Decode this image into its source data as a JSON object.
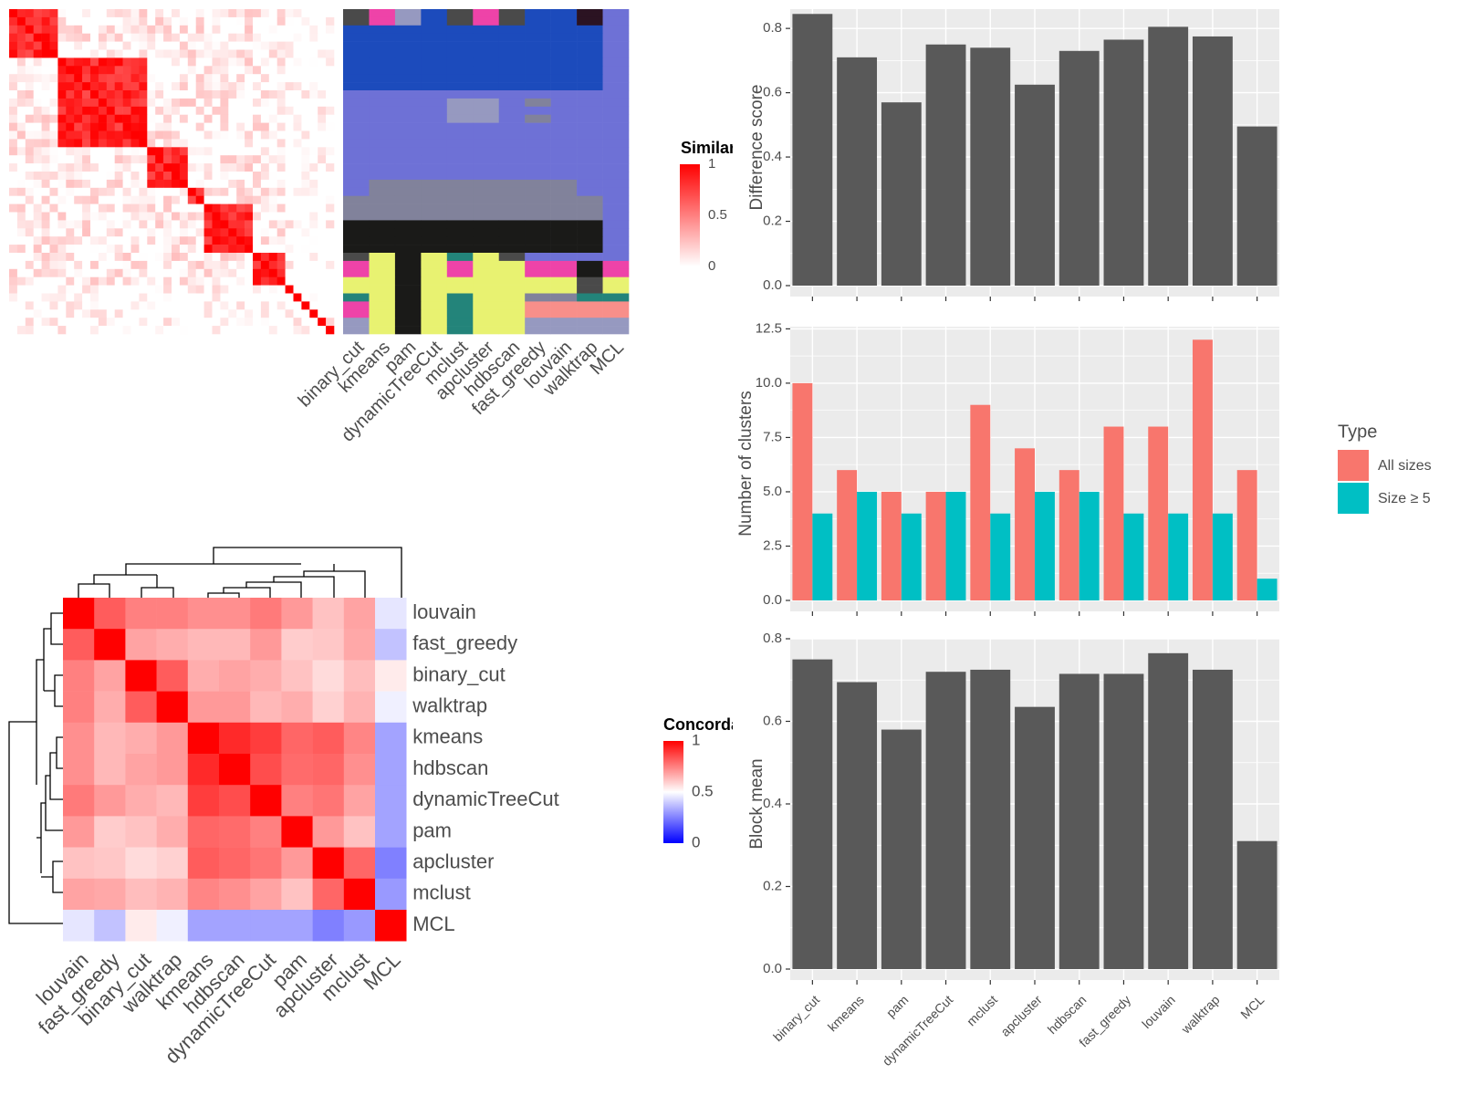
{
  "colors": {
    "panel_bg": "#EBEBEB",
    "grid": "#FFFFFF",
    "bar": "#595959",
    "all_sizes": "#F8766D",
    "size_ge5": "#00BFC4",
    "sim_low": "#FFFFFF",
    "sim_high": "#FF0000",
    "conc_low": "#0000FF",
    "conc_mid": "#FFFFFF",
    "conc_high": "#FF0000"
  },
  "chart_data": [
    {
      "type": "bar",
      "id": "difference_score",
      "ylabel": "Difference score",
      "ylim": [
        0,
        0.86
      ],
      "yticks": [
        "0.0",
        "0.2",
        "0.4",
        "0.6",
        "0.8"
      ],
      "yticks_values": [
        0,
        0.2,
        0.4,
        0.6,
        0.8
      ],
      "categories": [
        "binary_cut",
        "kmeans",
        "pam",
        "dynamicTreeCut",
        "mclust",
        "apcluster",
        "hdbscan",
        "fast_greedy",
        "louvain",
        "walktrap",
        "MCL"
      ],
      "values": [
        0.845,
        0.71,
        0.57,
        0.75,
        0.74,
        0.625,
        0.73,
        0.765,
        0.805,
        0.775,
        0.495
      ],
      "grid": true
    },
    {
      "type": "bar",
      "id": "number_of_clusters",
      "ylabel": "Number of clusters",
      "ylim": [
        0,
        12.6
      ],
      "yticks": [
        "0.0",
        "2.5",
        "5.0",
        "7.5",
        "10.0",
        "12.5"
      ],
      "yticks_values": [
        0,
        2.5,
        5,
        7.5,
        10,
        12.5
      ],
      "categories": [
        "binary_cut",
        "kmeans",
        "pam",
        "dynamicTreeCut",
        "mclust",
        "apcluster",
        "hdbscan",
        "fast_greedy",
        "louvain",
        "walktrap",
        "MCL"
      ],
      "series": [
        {
          "name": "All sizes",
          "values": [
            10,
            6,
            5,
            5,
            9,
            7,
            6,
            8,
            8,
            12,
            6
          ]
        },
        {
          "name": "Size ≥ 5",
          "values": [
            4,
            5,
            4,
            5,
            4,
            5,
            5,
            4,
            4,
            4,
            1
          ]
        }
      ],
      "legend": {
        "title": "Type",
        "entries": [
          "All sizes",
          "Size ≥ 5"
        ],
        "placement": "right"
      },
      "grid": true
    },
    {
      "type": "bar",
      "id": "block_mean",
      "ylabel": "Block mean",
      "ylim": [
        0,
        0.8
      ],
      "yticks": [
        "0.0",
        "0.2",
        "0.4",
        "0.6",
        "0.8"
      ],
      "yticks_values": [
        0,
        0.2,
        0.4,
        0.6,
        0.8
      ],
      "categories": [
        "binary_cut",
        "kmeans",
        "pam",
        "dynamicTreeCut",
        "mclust",
        "apcluster",
        "hdbscan",
        "fast_greedy",
        "louvain",
        "walktrap",
        "MCL"
      ],
      "values": [
        0.75,
        0.695,
        0.58,
        0.72,
        0.725,
        0.635,
        0.715,
        0.715,
        0.765,
        0.725,
        0.31
      ],
      "grid": true
    },
    {
      "type": "heatmap",
      "id": "similarity_heatmap",
      "legend": {
        "title": "Similarity",
        "ticks": [
          "0",
          "0.5",
          "1"
        ]
      },
      "n_terms": 40,
      "cluster_sizes": [
        6,
        11,
        5,
        2,
        6,
        4,
        1,
        1,
        1,
        1,
        1,
        1
      ]
    },
    {
      "type": "heatmap",
      "id": "cluster_assignment_heatmap",
      "columns": [
        "binary_cut",
        "kmeans",
        "pam",
        "dynamicTreeCut",
        "mclust",
        "apcluster",
        "hdbscan",
        "fast_greedy",
        "louvain",
        "walktrap",
        "MCL"
      ]
    },
    {
      "type": "heatmap",
      "id": "concordance_heatmap",
      "legend": {
        "title": "Concordance",
        "ticks": [
          "0",
          "0.5",
          "1"
        ]
      },
      "labels": [
        "louvain",
        "fast_greedy",
        "binary_cut",
        "walktrap",
        "kmeans",
        "hdbscan",
        "dynamicTreeCut",
        "pam",
        "apcluster",
        "mclust",
        "MCL"
      ],
      "values": [
        [
          1.0,
          0.82,
          0.75,
          0.75,
          0.72,
          0.72,
          0.76,
          0.7,
          0.62,
          0.68,
          0.45
        ],
        [
          0.82,
          1.0,
          0.68,
          0.66,
          0.64,
          0.64,
          0.7,
          0.6,
          0.61,
          0.67,
          0.38
        ],
        [
          0.75,
          0.68,
          1.0,
          0.82,
          0.66,
          0.68,
          0.66,
          0.62,
          0.57,
          0.63,
          0.54
        ],
        [
          0.75,
          0.66,
          0.82,
          1.0,
          0.7,
          0.7,
          0.64,
          0.66,
          0.59,
          0.65,
          0.47
        ],
        [
          0.72,
          0.64,
          0.66,
          0.7,
          1.0,
          0.92,
          0.88,
          0.8,
          0.82,
          0.74,
          0.32
        ],
        [
          0.72,
          0.64,
          0.68,
          0.7,
          0.92,
          1.0,
          0.85,
          0.79,
          0.8,
          0.72,
          0.32
        ],
        [
          0.76,
          0.7,
          0.66,
          0.64,
          0.88,
          0.85,
          1.0,
          0.75,
          0.77,
          0.68,
          0.32
        ],
        [
          0.7,
          0.6,
          0.62,
          0.66,
          0.8,
          0.79,
          0.75,
          1.0,
          0.7,
          0.62,
          0.32
        ],
        [
          0.62,
          0.61,
          0.57,
          0.59,
          0.82,
          0.8,
          0.77,
          0.7,
          1.0,
          0.8,
          0.25
        ],
        [
          0.68,
          0.67,
          0.63,
          0.65,
          0.74,
          0.72,
          0.68,
          0.62,
          0.8,
          1.0,
          0.3
        ],
        [
          0.45,
          0.38,
          0.54,
          0.47,
          0.32,
          0.32,
          0.32,
          0.32,
          0.25,
          0.3,
          1.0
        ]
      ]
    }
  ]
}
